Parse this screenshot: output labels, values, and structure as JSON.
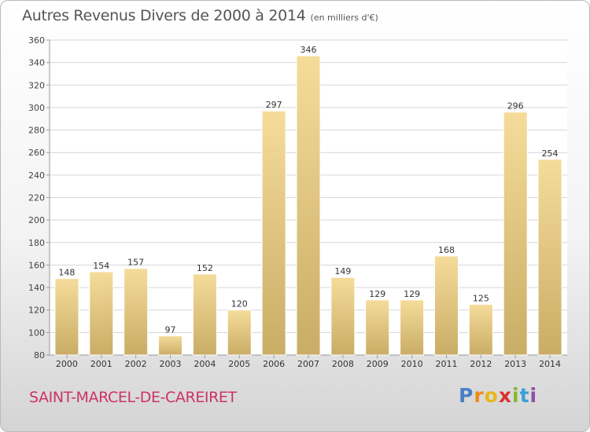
{
  "header": {
    "title": "Autres Revenus Divers de 2000 à 2014",
    "subtitle": "(en milliers d'€)"
  },
  "footer": {
    "place": "SAINT-MARCEL-DE-CAREIRET",
    "logo_text": "Proxiti"
  },
  "colors": {
    "bar_light": "#f5dc9a",
    "bar_dark": "#c9ad66",
    "grid": "#d6d6d6",
    "place_text": "#cc3366"
  },
  "chart_data": {
    "type": "bar",
    "categories": [
      "2000",
      "2001",
      "2002",
      "2003",
      "2004",
      "2005",
      "2006",
      "2007",
      "2008",
      "2009",
      "2010",
      "2011",
      "2012",
      "2013",
      "2014"
    ],
    "values": [
      148,
      154,
      157,
      97,
      152,
      120,
      297,
      346,
      149,
      129,
      129,
      168,
      125,
      296,
      254
    ],
    "title": "Autres Revenus Divers de 2000 à 2014",
    "subtitle": "(en milliers d'€)",
    "xlabel": "",
    "ylabel": "",
    "ylim": [
      80,
      360
    ],
    "yticks": [
      80,
      100,
      120,
      140,
      160,
      180,
      200,
      220,
      240,
      260,
      280,
      300,
      320,
      340,
      360
    ],
    "grid": true,
    "data_labels": true
  }
}
